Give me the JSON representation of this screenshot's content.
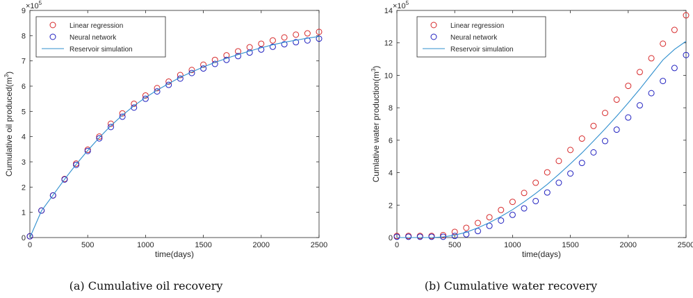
{
  "chart_data": [
    {
      "type": "scatter",
      "caption": "(a) Cumulative oil recovery",
      "xlabel": "time(days)",
      "ylabel_text": "Cumulative oil produced(m",
      "ylabel_sup": "3",
      "ylabel_close": ")",
      "y_exponent_base": "×10",
      "y_exponent_power": "5",
      "xlim": [
        0,
        2500
      ],
      "ylim": [
        0,
        9
      ],
      "x_ticks": [
        0,
        500,
        1000,
        1500,
        2000,
        2500
      ],
      "y_ticks": [
        0,
        1,
        2,
        3,
        4,
        5,
        6,
        7,
        8,
        9
      ],
      "legend_position": "top-left",
      "series": [
        {
          "name": "Linear regression",
          "marker": "circle",
          "color": "#d62728",
          "x": [
            0,
            100,
            200,
            300,
            400,
            500,
            600,
            700,
            800,
            900,
            1000,
            1100,
            1200,
            1300,
            1400,
            1500,
            1600,
            1700,
            1800,
            1900,
            2000,
            2100,
            2200,
            2300,
            2400,
            2500
          ],
          "y": [
            0.05,
            1.07,
            1.67,
            2.32,
            2.93,
            3.48,
            4.0,
            4.51,
            4.92,
            5.3,
            5.63,
            5.92,
            6.18,
            6.44,
            6.64,
            6.85,
            7.04,
            7.22,
            7.38,
            7.54,
            7.68,
            7.81,
            7.93,
            8.04,
            8.09,
            8.15
          ]
        },
        {
          "name": "Neural network",
          "marker": "circle",
          "color": "#1f1fbf",
          "x": [
            0,
            100,
            200,
            300,
            400,
            500,
            600,
            700,
            800,
            900,
            1000,
            1100,
            1200,
            1300,
            1400,
            1500,
            1600,
            1700,
            1800,
            1900,
            2000,
            2100,
            2200,
            2300,
            2400,
            2500
          ],
          "y": [
            0.05,
            1.07,
            1.67,
            2.3,
            2.88,
            3.43,
            3.93,
            4.38,
            4.79,
            5.15,
            5.5,
            5.79,
            6.05,
            6.3,
            6.52,
            6.7,
            6.88,
            7.04,
            7.19,
            7.33,
            7.45,
            7.56,
            7.66,
            7.74,
            7.81,
            7.88
          ]
        },
        {
          "name": "Reservoir simulation",
          "marker": "line",
          "color": "#2f8fce",
          "x": [
            0,
            100,
            200,
            300,
            400,
            500,
            600,
            700,
            800,
            900,
            1000,
            1100,
            1200,
            1300,
            1400,
            1500,
            1600,
            1700,
            1800,
            1900,
            2000,
            2100,
            2200,
            2300,
            2400,
            2500
          ],
          "y": [
            0.0,
            1.06,
            1.68,
            2.31,
            2.9,
            3.45,
            3.96,
            4.43,
            4.85,
            5.22,
            5.55,
            5.84,
            6.1,
            6.35,
            6.56,
            6.76,
            6.94,
            7.1,
            7.25,
            7.39,
            7.52,
            7.64,
            7.74,
            7.82,
            7.9,
            7.97
          ]
        }
      ]
    },
    {
      "type": "scatter",
      "caption": "(b) Cumulative water recovery",
      "xlabel": "time(days)",
      "ylabel_text": "Cumlative water production(m",
      "ylabel_sup": "3",
      "ylabel_close": ")",
      "y_exponent_base": "×10",
      "y_exponent_power": "5",
      "xlim": [
        0,
        2500
      ],
      "ylim": [
        0,
        14
      ],
      "x_ticks": [
        0,
        500,
        1000,
        1500,
        2000,
        2500
      ],
      "y_ticks": [
        0,
        2,
        4,
        6,
        8,
        10,
        12,
        14
      ],
      "legend_position": "top-right",
      "series": [
        {
          "name": "Linear regression",
          "marker": "circle",
          "color": "#d62728",
          "x": [
            0,
            100,
            200,
            300,
            400,
            500,
            600,
            700,
            800,
            900,
            1000,
            1100,
            1200,
            1300,
            1400,
            1500,
            1600,
            1700,
            1800,
            1900,
            2000,
            2100,
            2200,
            2300,
            2400,
            2500
          ],
          "y": [
            0.1,
            0.1,
            0.1,
            0.1,
            0.15,
            0.35,
            0.6,
            0.9,
            1.25,
            1.7,
            2.2,
            2.75,
            3.38,
            4.02,
            4.72,
            5.4,
            6.1,
            6.88,
            7.68,
            8.5,
            9.35,
            10.2,
            11.05,
            11.95,
            12.8,
            13.7
          ]
        },
        {
          "name": "Neural network",
          "marker": "circle",
          "color": "#1f1fbf",
          "x": [
            0,
            100,
            200,
            300,
            400,
            500,
            600,
            700,
            800,
            900,
            1000,
            1100,
            1200,
            1300,
            1400,
            1500,
            1600,
            1700,
            1800,
            1900,
            2000,
            2100,
            2200,
            2300,
            2400,
            2500
          ],
          "y": [
            0.05,
            0.05,
            0.05,
            0.05,
            0.05,
            0.1,
            0.2,
            0.4,
            0.72,
            1.05,
            1.4,
            1.8,
            2.25,
            2.78,
            3.38,
            3.95,
            4.6,
            5.25,
            5.95,
            6.65,
            7.4,
            8.15,
            8.9,
            9.65,
            10.45,
            11.25
          ]
        },
        {
          "name": "Reservoir simulation",
          "marker": "line",
          "color": "#2f8fce",
          "x": [
            0,
            100,
            200,
            300,
            400,
            500,
            600,
            700,
            800,
            900,
            1000,
            1100,
            1200,
            1300,
            1400,
            1500,
            1600,
            1700,
            1800,
            1900,
            2000,
            2100,
            2200,
            2300,
            2400,
            2500
          ],
          "y": [
            0.0,
            0.0,
            0.0,
            0.0,
            0.04,
            0.15,
            0.33,
            0.6,
            0.92,
            1.3,
            1.72,
            2.2,
            2.72,
            3.28,
            3.9,
            4.55,
            5.22,
            5.95,
            6.7,
            7.48,
            8.3,
            9.15,
            10.05,
            10.95,
            11.6,
            12.1
          ]
        }
      ]
    }
  ]
}
